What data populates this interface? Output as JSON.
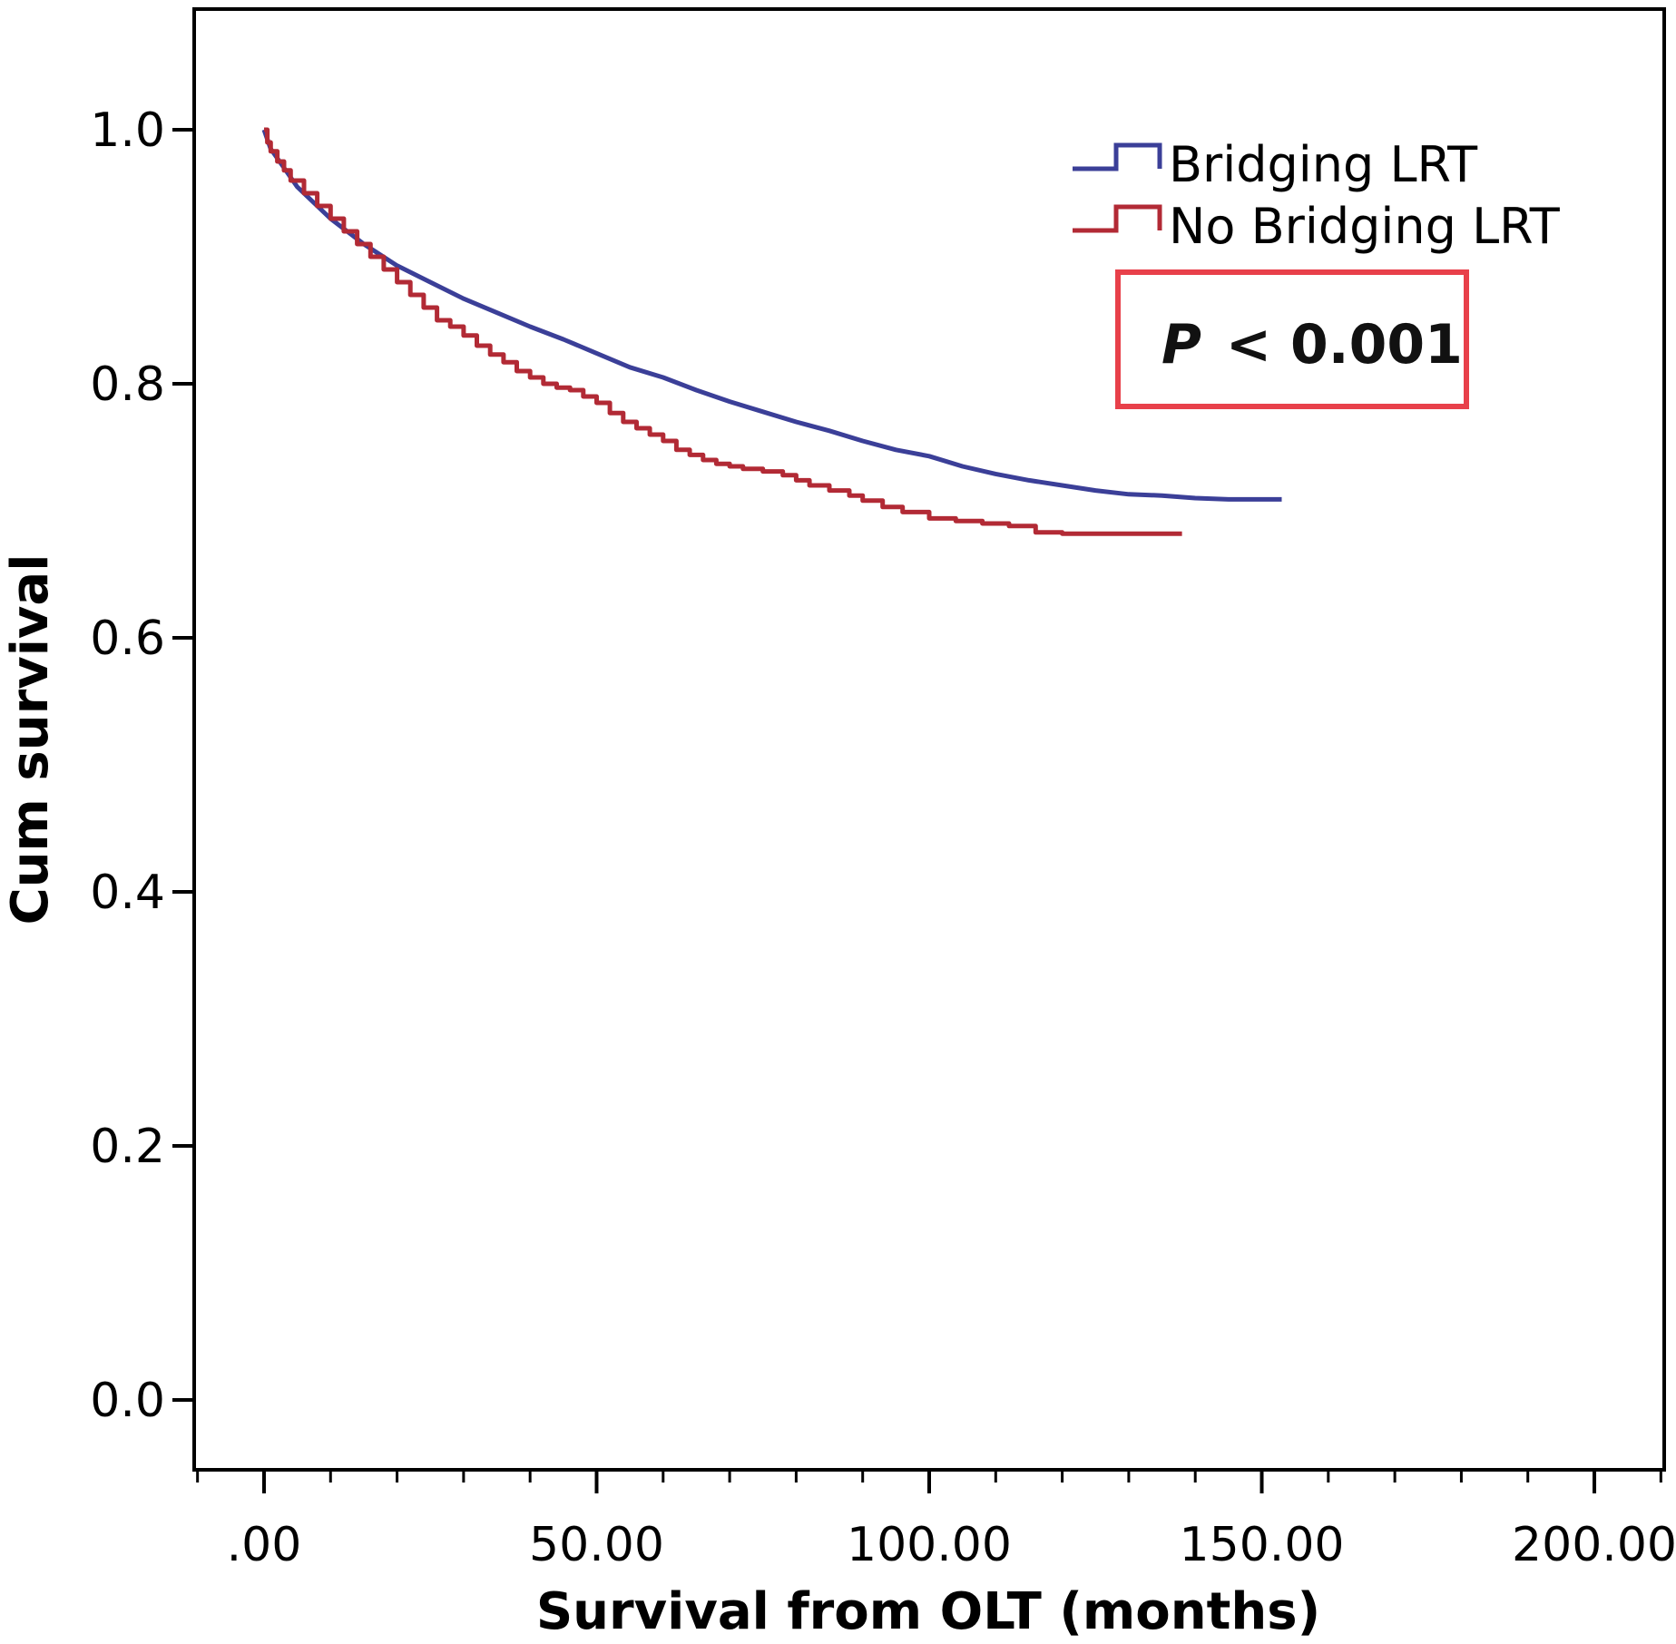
{
  "chart_data": {
    "type": "line",
    "xlabel": "Survival from OLT (months)",
    "ylabel": "Cum survival",
    "xlim": [
      -10.5,
      210.5
    ],
    "ylim": [
      -0.055,
      1.095
    ],
    "xticks": [
      0,
      50,
      100,
      150,
      200
    ],
    "xtick_labels": [
      ".00",
      "50.00",
      "100.00",
      "150.00",
      "200.00"
    ],
    "xminor_step": 10,
    "yticks": [
      0,
      0.2,
      0.4,
      0.6,
      0.8,
      1.0
    ],
    "ytick_labels": [
      "0.0",
      "0.2",
      "0.4",
      "0.6",
      "0.8",
      "1.0"
    ],
    "grid": false,
    "legend_position": "top-right",
    "annotation": {
      "italic": "P",
      "rest": "< 0.001",
      "border_color": "#e8404a"
    },
    "series": [
      {
        "name": "Bridging LRT",
        "color": "#3b3f98",
        "step": false,
        "points": [
          [
            0,
            1.0
          ],
          [
            1,
            0.985
          ],
          [
            3,
            0.97
          ],
          [
            5,
            0.955
          ],
          [
            8,
            0.94
          ],
          [
            10,
            0.93
          ],
          [
            15,
            0.91
          ],
          [
            20,
            0.893
          ],
          [
            25,
            0.88
          ],
          [
            30,
            0.867
          ],
          [
            35,
            0.856
          ],
          [
            40,
            0.845
          ],
          [
            45,
            0.835
          ],
          [
            50,
            0.824
          ],
          [
            55,
            0.813
          ],
          [
            60,
            0.805
          ],
          [
            65,
            0.795
          ],
          [
            70,
            0.786
          ],
          [
            75,
            0.778
          ],
          [
            80,
            0.77
          ],
          [
            85,
            0.763
          ],
          [
            90,
            0.755
          ],
          [
            95,
            0.748
          ],
          [
            100,
            0.743
          ],
          [
            105,
            0.735
          ],
          [
            110,
            0.729
          ],
          [
            115,
            0.724
          ],
          [
            120,
            0.72
          ],
          [
            125,
            0.716
          ],
          [
            130,
            0.713
          ],
          [
            135,
            0.712
          ],
          [
            140,
            0.71
          ],
          [
            145,
            0.709
          ],
          [
            150,
            0.709
          ],
          [
            153,
            0.709
          ]
        ]
      },
      {
        "name": "No Bridging LRT",
        "color": "#b22a35",
        "step": true,
        "points": [
          [
            0,
            1.0
          ],
          [
            0.5,
            0.99
          ],
          [
            1,
            0.983
          ],
          [
            2,
            0.975
          ],
          [
            3,
            0.968
          ],
          [
            4,
            0.96
          ],
          [
            6,
            0.95
          ],
          [
            8,
            0.94
          ],
          [
            10,
            0.93
          ],
          [
            12,
            0.92
          ],
          [
            14,
            0.91
          ],
          [
            16,
            0.9
          ],
          [
            18,
            0.89
          ],
          [
            20,
            0.88
          ],
          [
            22,
            0.87
          ],
          [
            24,
            0.86
          ],
          [
            26,
            0.85
          ],
          [
            28,
            0.845
          ],
          [
            30,
            0.838
          ],
          [
            32,
            0.83
          ],
          [
            34,
            0.823
          ],
          [
            36,
            0.817
          ],
          [
            38,
            0.81
          ],
          [
            40,
            0.805
          ],
          [
            42,
            0.8
          ],
          [
            44,
            0.797
          ],
          [
            46,
            0.795
          ],
          [
            48,
            0.79
          ],
          [
            50,
            0.785
          ],
          [
            52,
            0.777
          ],
          [
            54,
            0.77
          ],
          [
            56,
            0.765
          ],
          [
            58,
            0.76
          ],
          [
            60,
            0.755
          ],
          [
            62,
            0.748
          ],
          [
            64,
            0.744
          ],
          [
            66,
            0.74
          ],
          [
            68,
            0.737
          ],
          [
            70,
            0.735
          ],
          [
            72,
            0.733
          ],
          [
            75,
            0.731
          ],
          [
            78,
            0.728
          ],
          [
            80,
            0.724
          ],
          [
            82,
            0.72
          ],
          [
            85,
            0.716
          ],
          [
            88,
            0.712
          ],
          [
            90,
            0.708
          ],
          [
            93,
            0.703
          ],
          [
            96,
            0.699
          ],
          [
            100,
            0.694
          ],
          [
            104,
            0.692
          ],
          [
            108,
            0.69
          ],
          [
            112,
            0.688
          ],
          [
            116,
            0.683
          ],
          [
            120,
            0.682
          ],
          [
            125,
            0.682
          ],
          [
            130,
            0.682
          ],
          [
            135,
            0.682
          ],
          [
            138,
            0.682
          ]
        ]
      }
    ]
  }
}
